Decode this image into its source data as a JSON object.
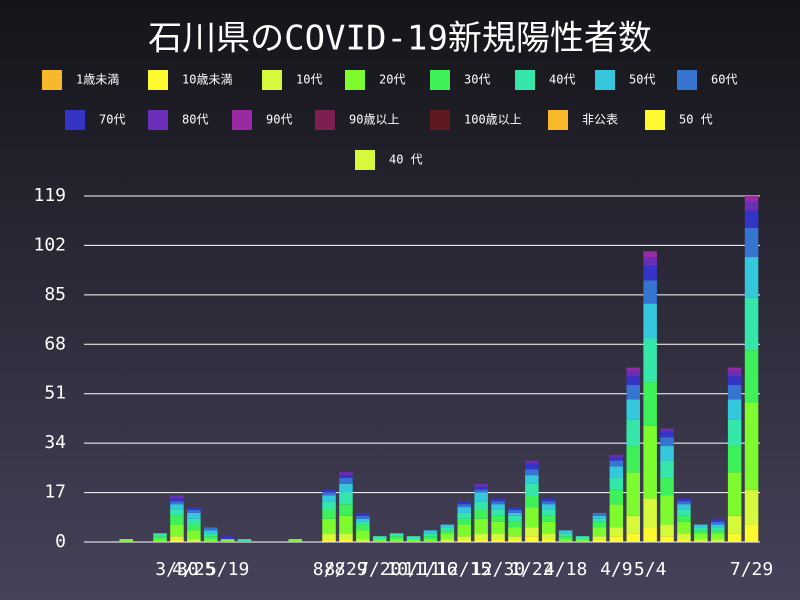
{
  "chart_data": {
    "type": "bar",
    "stacked": true,
    "title": "石川県のCOVID-19新規陽性者数",
    "categories": [
      null,
      null,
      null,
      null,
      null,
      "3/30",
      "4/25",
      null,
      "5/19",
      null,
      null,
      null,
      null,
      null,
      "8/8",
      "8/29",
      null,
      "7/20",
      null,
      "10/11",
      "11/16",
      null,
      "12/15",
      null,
      "12/30",
      null,
      "1/22",
      null,
      "4/18",
      null,
      null,
      "4/9",
      null,
      "5/4",
      null,
      null,
      null,
      null,
      null,
      "7/29"
    ],
    "ylim": [
      0,
      119
    ],
    "yticks": [
      0,
      17,
      34,
      51,
      68,
      85,
      102,
      119
    ],
    "grid": true,
    "series": [
      {
        "name": "1歳未満",
        "color": "#f9b82b",
        "values": [
          0,
          0,
          0,
          0,
          0,
          0,
          0,
          0,
          0,
          0,
          0,
          0,
          0,
          0,
          0,
          0,
          0,
          0,
          0,
          0,
          0,
          0,
          0,
          0,
          0,
          0,
          0,
          0,
          0,
          0,
          0,
          0,
          0,
          0,
          0,
          0,
          0,
          0,
          0,
          0
        ]
      },
      {
        "name": "10歳未満",
        "color": "#fdf92f",
        "values": [
          0,
          0,
          0,
          0,
          0,
          1,
          0,
          0,
          0,
          0,
          0,
          0,
          0,
          0,
          1,
          1,
          0,
          0,
          0,
          0,
          0,
          0,
          1,
          1,
          1,
          1,
          2,
          1,
          0,
          0,
          1,
          2,
          3,
          5,
          2,
          1,
          0,
          0,
          3,
          6
        ]
      },
      {
        "name": "10代",
        "color": "#d6fa3b",
        "values": [
          0,
          0,
          0,
          0,
          0,
          1,
          1,
          0,
          0,
          0,
          0,
          0,
          0,
          0,
          2,
          2,
          1,
          0,
          0,
          0,
          0,
          1,
          1,
          2,
          2,
          1,
          3,
          2,
          0,
          0,
          1,
          3,
          6,
          10,
          4,
          2,
          1,
          1,
          6,
          12
        ]
      },
      {
        "name": "20代",
        "color": "#7dfb2f",
        "values": [
          0,
          0,
          1,
          0,
          1,
          4,
          3,
          1,
          1,
          0,
          0,
          0,
          1,
          0,
          5,
          6,
          3,
          1,
          1,
          1,
          1,
          2,
          4,
          5,
          4,
          3,
          7,
          4,
          1,
          1,
          3,
          8,
          15,
          25,
          10,
          4,
          2,
          2,
          15,
          30
        ]
      },
      {
        "name": "30代",
        "color": "#3ef05a",
        "values": [
          0,
          0,
          0,
          0,
          1,
          3,
          2,
          1,
          0,
          0,
          0,
          0,
          0,
          0,
          3,
          4,
          2,
          0,
          1,
          0,
          1,
          1,
          2,
          3,
          2,
          2,
          4,
          2,
          1,
          0,
          2,
          5,
          9,
          15,
          6,
          2,
          1,
          1,
          9,
          18
        ]
      },
      {
        "name": "40代",
        "color": "#34e7a9",
        "values": [
          0,
          0,
          0,
          0,
          1,
          2,
          2,
          1,
          0,
          1,
          0,
          0,
          0,
          0,
          3,
          4,
          1,
          1,
          1,
          1,
          1,
          1,
          2,
          3,
          2,
          2,
          4,
          2,
          1,
          1,
          1,
          4,
          9,
          15,
          6,
          2,
          1,
          1,
          9,
          18
        ]
      },
      {
        "name": "50代",
        "color": "#35c7dc",
        "values": [
          0,
          0,
          0,
          0,
          0,
          2,
          2,
          1,
          0,
          0,
          0,
          0,
          0,
          0,
          2,
          3,
          1,
          0,
          0,
          0,
          1,
          1,
          2,
          3,
          2,
          1,
          3,
          2,
          1,
          0,
          1,
          4,
          7,
          12,
          5,
          2,
          1,
          1,
          7,
          14
        ]
      },
      {
        "name": "60代",
        "color": "#3575d0",
        "values": [
          0,
          0,
          0,
          0,
          0,
          1,
          1,
          1,
          0,
          0,
          0,
          0,
          0,
          0,
          1,
          2,
          1,
          0,
          0,
          0,
          0,
          0,
          1,
          1,
          1,
          1,
          2,
          1,
          0,
          0,
          1,
          2,
          5,
          8,
          3,
          1,
          0,
          1,
          5,
          10
        ]
      },
      {
        "name": "70代",
        "color": "#3434c7",
        "values": [
          0,
          0,
          0,
          0,
          0,
          1,
          1,
          0,
          1,
          0,
          0,
          0,
          0,
          0,
          1,
          1,
          1,
          0,
          0,
          0,
          0,
          0,
          1,
          1,
          1,
          1,
          2,
          1,
          0,
          0,
          0,
          1,
          3,
          5,
          2,
          1,
          0,
          1,
          3,
          6
        ]
      },
      {
        "name": "80代",
        "color": "#6a2eb9",
        "values": [
          0,
          0,
          0,
          0,
          0,
          1,
          0,
          0,
          0,
          0,
          0,
          0,
          0,
          0,
          0,
          1,
          0,
          0,
          0,
          0,
          0,
          0,
          0,
          1,
          0,
          0,
          1,
          0,
          0,
          0,
          0,
          1,
          2,
          3,
          1,
          0,
          0,
          0,
          2,
          3
        ]
      },
      {
        "name": "90代",
        "color": "#9a2aa3",
        "values": [
          0,
          0,
          0,
          0,
          0,
          0,
          0,
          0,
          0,
          0,
          0,
          0,
          0,
          0,
          0,
          0,
          0,
          0,
          0,
          0,
          0,
          0,
          0,
          0,
          0,
          0,
          0,
          0,
          0,
          0,
          0,
          0,
          1,
          2,
          0,
          0,
          0,
          0,
          1,
          2
        ]
      },
      {
        "name": "90歳以上",
        "color": "#7d1f4f",
        "values": [
          0,
          0,
          0,
          0,
          0,
          0,
          0,
          0,
          0,
          0,
          0,
          0,
          0,
          0,
          0,
          0,
          0,
          0,
          0,
          0,
          0,
          0,
          0,
          0,
          0,
          0,
          0,
          0,
          0,
          0,
          0,
          0,
          0,
          0,
          0,
          0,
          0,
          0,
          0,
          0
        ]
      },
      {
        "name": "100歳以上",
        "color": "#5e1a1e",
        "values": [
          0,
          0,
          0,
          0,
          0,
          0,
          0,
          0,
          0,
          0,
          0,
          0,
          0,
          0,
          0,
          0,
          0,
          0,
          0,
          0,
          0,
          0,
          0,
          0,
          0,
          0,
          0,
          0,
          0,
          0,
          0,
          0,
          0,
          0,
          0,
          0,
          0,
          0,
          0,
          0
        ]
      },
      {
        "name": "非公表",
        "color": "#f9b82b",
        "values": [
          0,
          0,
          0,
          0,
          0,
          0,
          0,
          0,
          0,
          0,
          0,
          0,
          0,
          0,
          0,
          0,
          0,
          0,
          0,
          0,
          0,
          0,
          0,
          0,
          0,
          0,
          0,
          0,
          0,
          0,
          0,
          0,
          0,
          0,
          0,
          0,
          0,
          0,
          0,
          0
        ]
      },
      {
        "name": "50 代",
        "color": "#fdf92f",
        "values": [
          0,
          0,
          0,
          0,
          0,
          0,
          0,
          0,
          0,
          0,
          0,
          0,
          0,
          0,
          0,
          0,
          0,
          0,
          0,
          0,
          0,
          0,
          0,
          0,
          0,
          0,
          0,
          0,
          0,
          0,
          0,
          0,
          0,
          0,
          0,
          0,
          0,
          0,
          0,
          0
        ]
      },
      {
        "name": "40 代",
        "color": "#d6fa3b",
        "values": [
          0,
          0,
          0,
          0,
          0,
          0,
          0,
          0,
          0,
          0,
          0,
          0,
          0,
          0,
          0,
          0,
          0,
          0,
          0,
          0,
          0,
          0,
          0,
          0,
          0,
          0,
          0,
          0,
          0,
          0,
          0,
          0,
          0,
          0,
          0,
          0,
          0,
          0,
          0,
          0
        ]
      }
    ]
  }
}
